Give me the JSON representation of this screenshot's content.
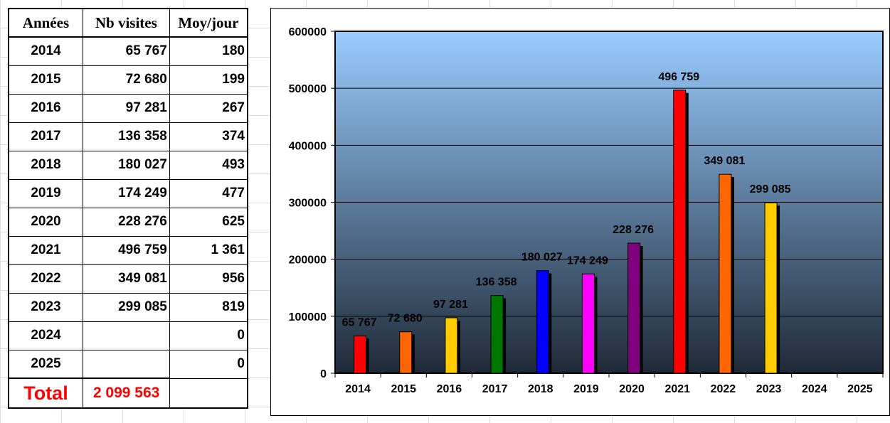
{
  "table": {
    "headers": [
      "Années",
      "Nb visites",
      "Moy/jour"
    ],
    "rows": [
      {
        "year": "2014",
        "visits": "65 767",
        "per_day": "180"
      },
      {
        "year": "2015",
        "visits": "72 680",
        "per_day": "199"
      },
      {
        "year": "2016",
        "visits": "97 281",
        "per_day": "267"
      },
      {
        "year": "2017",
        "visits": "136 358",
        "per_day": "374"
      },
      {
        "year": "2018",
        "visits": "180 027",
        "per_day": "493"
      },
      {
        "year": "2019",
        "visits": "174 249",
        "per_day": "477"
      },
      {
        "year": "2020",
        "visits": "228 276",
        "per_day": "625"
      },
      {
        "year": "2021",
        "visits": "496 759",
        "per_day": "1 361"
      },
      {
        "year": "2022",
        "visits": "349 081",
        "per_day": "956"
      },
      {
        "year": "2023",
        "visits": "299 085",
        "per_day": "819"
      },
      {
        "year": "2024",
        "visits": "",
        "per_day": "0"
      },
      {
        "year": "2025",
        "visits": "",
        "per_day": "0"
      }
    ],
    "total_label": "Total",
    "total_value": "2 099 563"
  },
  "chart_data": {
    "type": "bar",
    "categories": [
      "2014",
      "2015",
      "2016",
      "2017",
      "2018",
      "2019",
      "2020",
      "2021",
      "2022",
      "2023",
      "2024",
      "2025"
    ],
    "values": [
      65767,
      72680,
      97281,
      136358,
      180027,
      174249,
      228276,
      496759,
      349081,
      299085,
      0,
      0
    ],
    "data_labels": [
      "65 767",
      "72 680",
      "97 281",
      "136 358",
      "180 027",
      "174 249",
      "228 276",
      "496 759",
      "349 081",
      "299 085",
      "",
      ""
    ],
    "bar_colors": [
      "#ff0000",
      "#ff6600",
      "#ffcc00",
      "#007700",
      "#0000ff",
      "#ff00ff",
      "#800080",
      "#ff0000",
      "#ff6600",
      "#ffcc00",
      "#ff0000",
      "#ff6600"
    ],
    "ylim": [
      0,
      600000
    ],
    "yticks": [
      0,
      100000,
      200000,
      300000,
      400000,
      500000,
      600000
    ],
    "ytick_labels": [
      "0",
      "100000",
      "200000",
      "300000",
      "400000",
      "500000",
      "600000"
    ],
    "grid": true,
    "background_gradient": [
      "#99ccff",
      "#1f2a38"
    ]
  }
}
